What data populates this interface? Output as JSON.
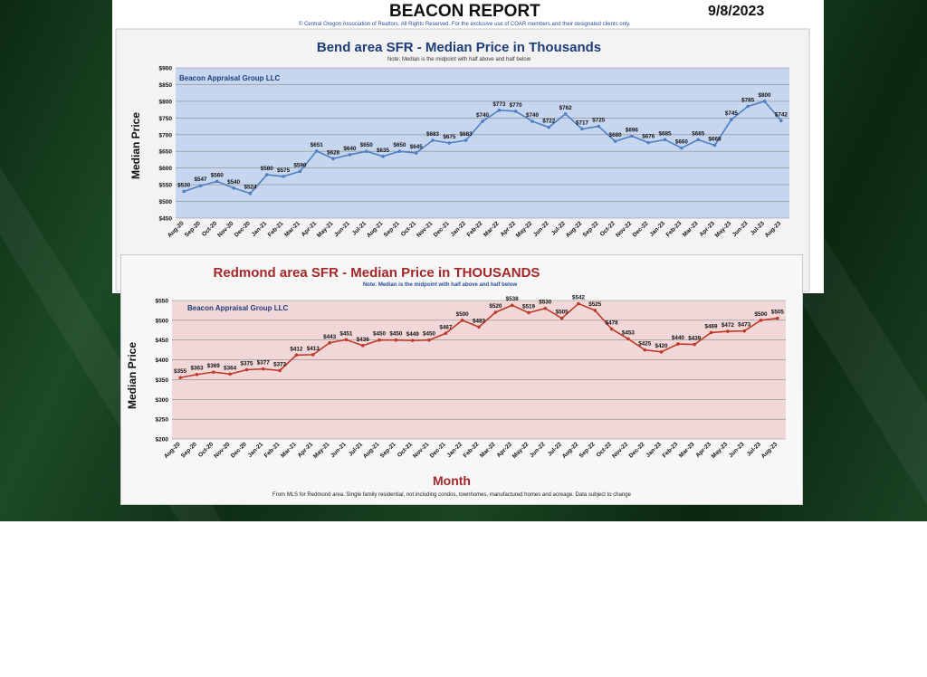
{
  "header": {
    "title": "BEACON REPORT",
    "date": "9/8/2023",
    "copyright": "© Central Oregon Association of Realtors. All Rights Reserved. For the exclusive use of COAR members and their designated clients only."
  },
  "colors": {
    "bend_line": "#4f7ec4",
    "bend_plot_bg": "#c6d6ef",
    "bend_title": "#1f3d7a",
    "redmond_line": "#c0392b",
    "redmond_plot_bg": "#f1d7d7",
    "redmond_title": "#a3282b"
  },
  "chart_data": [
    {
      "id": "bend",
      "type": "line",
      "title": "Bend area SFR - Median Price in Thousands",
      "subtitle": "Note: Median is the midpoint with half above and half below",
      "watermark": "Beacon Appraisal Group LLC",
      "ylabel": "Median Price",
      "xlabel": "",
      "ylim": [
        450,
        900
      ],
      "yticks": [
        450,
        500,
        550,
        600,
        650,
        700,
        750,
        800,
        850,
        900
      ],
      "ytick_labels": [
        "$450",
        "$500",
        "$550",
        "$600",
        "$650",
        "$700",
        "$750",
        "$800",
        "$850",
        "$900"
      ],
      "categories": [
        "Aug-20",
        "Sep-20",
        "Oct-20",
        "Nov-20",
        "Dec-20",
        "Jan-21",
        "Feb-21",
        "Mar-21",
        "Apr-21",
        "May-21",
        "Jun-21",
        "Jul-21",
        "Aug-21",
        "Sep-21",
        "Oct-21",
        "Nov-21",
        "Dec-21",
        "Jan-22",
        "Feb-22",
        "Mar-22",
        "Apr-22",
        "May-22",
        "Jun-22",
        "Jul-22",
        "Aug-22",
        "Sep-22",
        "Oct-22",
        "Nov-22",
        "Dec-22",
        "Jan-23",
        "Feb-23",
        "Mar-23",
        "Apr-23",
        "May-23",
        "Jun-23",
        "Jul-23",
        "Aug-23"
      ],
      "values": [
        530,
        547,
        560,
        540,
        524,
        580,
        575,
        590,
        651,
        628,
        640,
        650,
        635,
        650,
        645,
        683,
        675,
        683,
        740,
        773,
        770,
        740,
        722,
        762,
        717,
        725,
        680,
        696,
        676,
        685,
        660,
        685,
        668,
        745,
        785,
        800,
        742
      ],
      "data_labels": [
        "$530",
        "$547",
        "$560",
        "$540",
        "$524",
        "$580",
        "$575",
        "$590",
        "$651",
        "$628",
        "$640",
        "$650",
        "$635",
        "$650",
        "$645",
        "$683",
        "$675",
        "$683",
        "$740",
        "$773",
        "$770",
        "$740",
        "$722",
        "$762",
        "$717",
        "$725",
        "$680",
        "$696",
        "$676",
        "$685",
        "$660",
        "$685",
        "$668",
        "$745",
        "$785",
        "$800",
        "$742"
      ],
      "grid": true
    },
    {
      "id": "redmond",
      "type": "line",
      "title": "Redmond area SFR - Median Price in THOUSANDS",
      "subtitle": "Note: Median is the midpoint with half above and half below",
      "watermark": "Beacon Appraisal Group LLC",
      "ylabel": "Median Price",
      "xlabel": "Month",
      "footnote": "From MLS for Redmond area. Single family residential, not including condos, townhomes, manufactured homes and acreage. Data subject to change",
      "ylim": [
        200,
        550
      ],
      "yticks": [
        200,
        250,
        300,
        350,
        400,
        450,
        500,
        550
      ],
      "ytick_labels": [
        "$200",
        "$250",
        "$300",
        "$350",
        "$400",
        "$450",
        "$500",
        "$550"
      ],
      "categories": [
        "Aug-20",
        "Sep-20",
        "Oct-20",
        "Nov-20",
        "Dec-20",
        "Jan-21",
        "Feb-21",
        "Mar-21",
        "Apr-21",
        "May-21",
        "Jun-21",
        "Jul-21",
        "Aug-21",
        "Sep-21",
        "Oct-21",
        "Nov-21",
        "Dec-21",
        "Jan-22",
        "Feb-22",
        "Mar-22",
        "Apr-22",
        "May-22",
        "Jun-22",
        "Jul-22",
        "Aug-22",
        "Sep-22",
        "Oct-22",
        "Nov-22",
        "Dec-22",
        "Jan-23",
        "Feb-23",
        "Mar-23",
        "Apr-23",
        "May-23",
        "Jun-23",
        "Jul-23",
        "Aug-23"
      ],
      "values": [
        355,
        363,
        369,
        364,
        375,
        377,
        373,
        412,
        413,
        443,
        451,
        436,
        450,
        450,
        449,
        450,
        467,
        500,
        483,
        520,
        538,
        519,
        530,
        505,
        542,
        525,
        478,
        453,
        425,
        420,
        440,
        439,
        469,
        472,
        473,
        500,
        505
      ],
      "data_labels": [
        "$355",
        "$363",
        "$369",
        "$364",
        "$375",
        "$377",
        "$373",
        "$412",
        "$413",
        "$443",
        "$451",
        "$436",
        "$450",
        "$450",
        "$449",
        "$450",
        "$467",
        "$500",
        "$483",
        "$520",
        "$538",
        "$519",
        "$530",
        "$505",
        "$542",
        "$525",
        "$478",
        "$453",
        "$425",
        "$420",
        "$440",
        "$439",
        "$469",
        "$472",
        "$473",
        "$500",
        "$505"
      ],
      "grid": true
    }
  ]
}
